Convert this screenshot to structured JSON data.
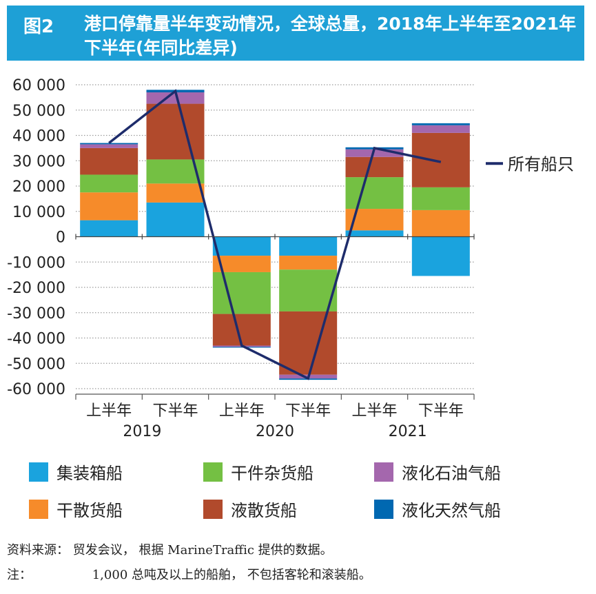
{
  "header": {
    "figure_label": "图2",
    "title": "港口停靠量半年变动情况，全球总量，2018年上半年至2021年下半年(年同比差异)"
  },
  "footer": {
    "source_label": "资料来源：",
    "source_text": "贸发会议， 根据 MarineTraffic 提供的数据。",
    "note_label": "注：",
    "note_text": "1,000 总吨及以上的船舶， 不包括客轮和滚装船。"
  },
  "colors": {
    "header_bg": "#1ea0d6",
    "container": "#1aa3de",
    "dry_bulk": "#f68b2a",
    "general_cargo": "#74c043",
    "liquid_bulk": "#b14a2c",
    "lpg": "#a467ad",
    "lng": "#0068b1",
    "line": "#1e2c6b"
  },
  "chart_data": {
    "type": "bar",
    "stacked": true,
    "categories": [
      "上半年",
      "下半年",
      "上半年",
      "下半年",
      "上半年",
      "下半年"
    ],
    "year_labels": [
      "2019",
      "2020",
      "2021"
    ],
    "ylim": [
      -60000,
      60000
    ],
    "yticks": [
      60000,
      50000,
      40000,
      30000,
      20000,
      10000,
      0,
      -10000,
      -20000,
      -30000,
      -40000,
      -50000,
      -60000
    ],
    "ytick_labels": [
      "60 000",
      "50 000",
      "40 000",
      "30 000",
      "20 000",
      "10 000",
      "0",
      "-10 000",
      "-20 000",
      "-30 000",
      "-40 000",
      "-50 000",
      "-60 000"
    ],
    "grid": "horizontal-dotted",
    "series": [
      {
        "name": "集装箱船",
        "color_key": "container",
        "values": [
          6500,
          13500,
          -7500,
          -7500,
          2500,
          -15500
        ]
      },
      {
        "name": "干散货船",
        "color_key": "dry_bulk",
        "values": [
          11000,
          7500,
          -6500,
          -5500,
          8500,
          10500
        ]
      },
      {
        "name": "干件杂货船",
        "color_key": "general_cargo",
        "values": [
          7000,
          9500,
          -16500,
          -16500,
          12500,
          9000
        ]
      },
      {
        "name": "液散货船",
        "color_key": "liquid_bulk",
        "values": [
          10500,
          22000,
          -12500,
          -25000,
          8000,
          21500
        ]
      },
      {
        "name": "液化石油气船",
        "color_key": "lpg",
        "values": [
          1500,
          4500,
          -500,
          -1500,
          3000,
          3000
        ]
      },
      {
        "name": "液化天然气船",
        "color_key": "lng",
        "values": [
          500,
          1000,
          -300,
          -500,
          800,
          800
        ]
      }
    ],
    "line_series": {
      "name": "所有船只",
      "values": [
        37000,
        57500,
        -43000,
        -56000,
        35000,
        29500
      ]
    },
    "legend_order": [
      "集装箱船",
      "干件杂货船",
      "液化石油气船",
      "干散货船",
      "液散货船",
      "液化天然气船"
    ]
  }
}
